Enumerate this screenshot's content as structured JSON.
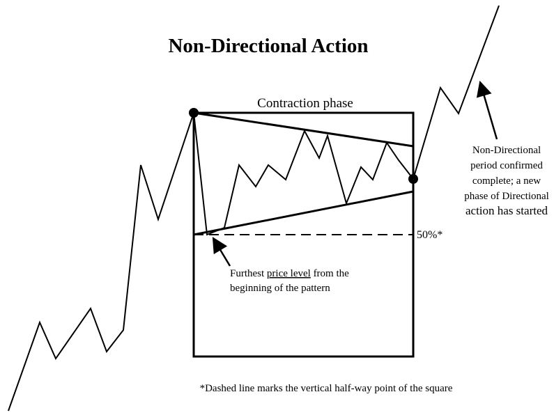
{
  "title": "Non-Directional Action",
  "box_label": "Contraction phase",
  "midline_label": "50%*",
  "pattern_note": {
    "lines": [
      [
        "Furthest ",
        "price level",
        " from the"
      ],
      [
        "beginning of the pattern"
      ]
    ]
  },
  "completion_note": {
    "lines": [
      "Non-Directional",
      "period confirmed",
      "complete; a new",
      "phase of Directional",
      "action has started"
    ]
  },
  "footnote": "*Dashed line marks the vertical half-way point of the square"
}
